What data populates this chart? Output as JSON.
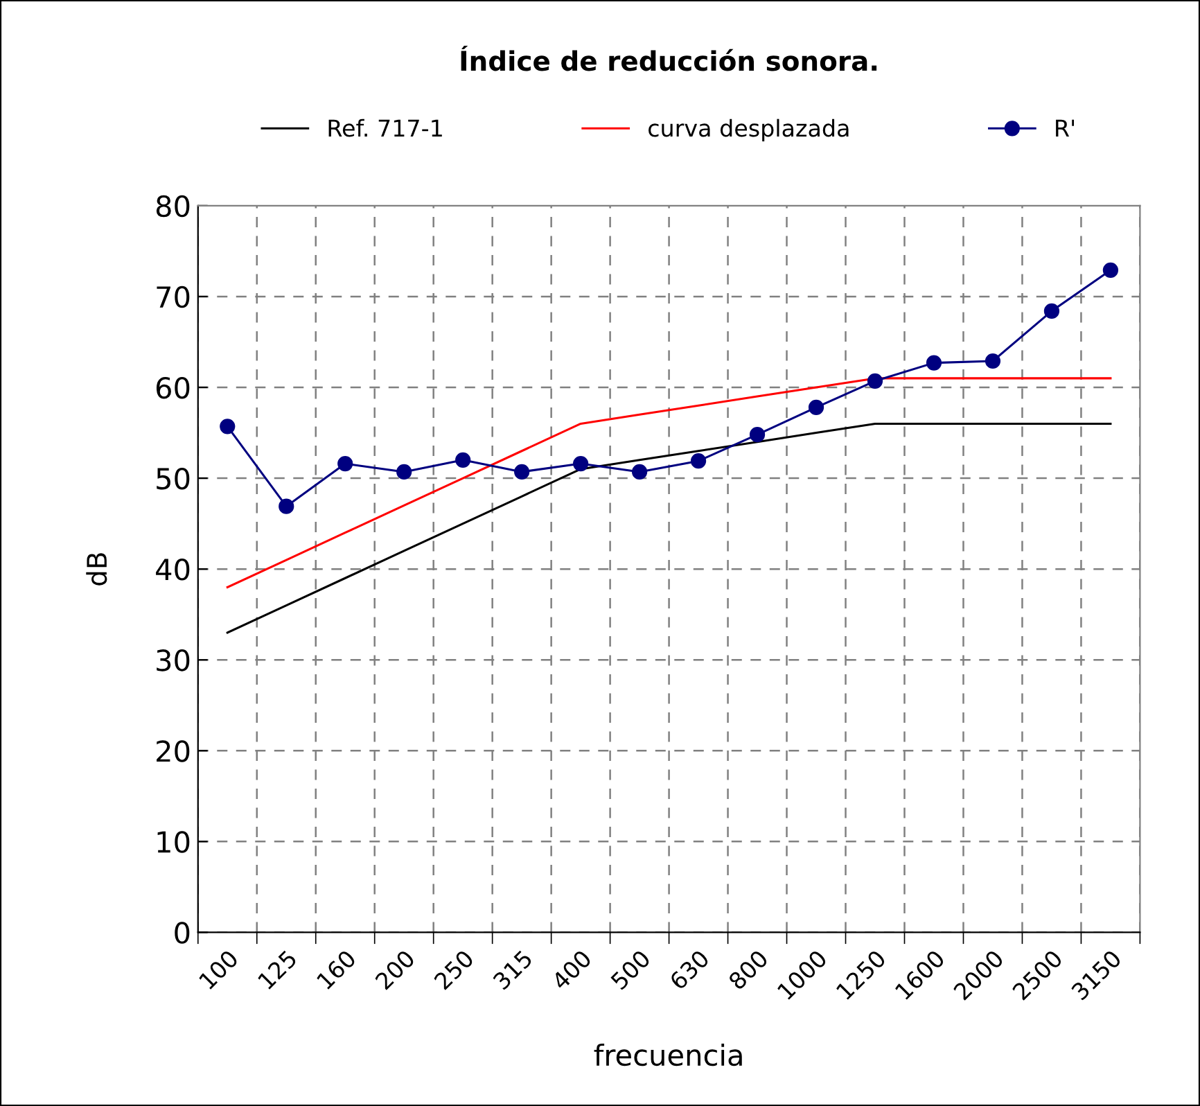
{
  "chart_data": {
    "type": "line",
    "title": "Índice de reducción sonora.",
    "xlabel": "frecuencia",
    "ylabel": "dB",
    "categories": [
      "100",
      "125",
      "160",
      "200",
      "250",
      "315",
      "400",
      "500",
      "630",
      "800",
      "1000",
      "1250",
      "1600",
      "2000",
      "2500",
      "3150"
    ],
    "series": [
      {
        "name": "Ref. 717-1",
        "color": "#000000",
        "marker": "none",
        "values": [
          33,
          36,
          39,
          42,
          45,
          48,
          51,
          52,
          53,
          54,
          55,
          56,
          56,
          56,
          56,
          56
        ]
      },
      {
        "name": "curva desplazada",
        "color": "#ff0000",
        "marker": "none",
        "values": [
          38,
          41,
          44,
          47,
          50,
          53,
          56,
          57,
          58,
          59,
          60,
          61,
          61,
          61,
          61,
          61
        ]
      },
      {
        "name": "R'",
        "color": "#000080",
        "marker": "circle",
        "values": [
          55.7,
          46.9,
          51.6,
          50.7,
          52.0,
          50.7,
          51.6,
          50.7,
          51.9,
          54.8,
          57.8,
          60.7,
          62.7,
          62.9,
          68.4,
          72.9
        ]
      }
    ],
    "ylim": [
      0,
      80
    ],
    "yticks": [
      0,
      10,
      20,
      30,
      40,
      50,
      60,
      70,
      80
    ],
    "grid": true,
    "legend": "top",
    "line_style": "solid"
  }
}
